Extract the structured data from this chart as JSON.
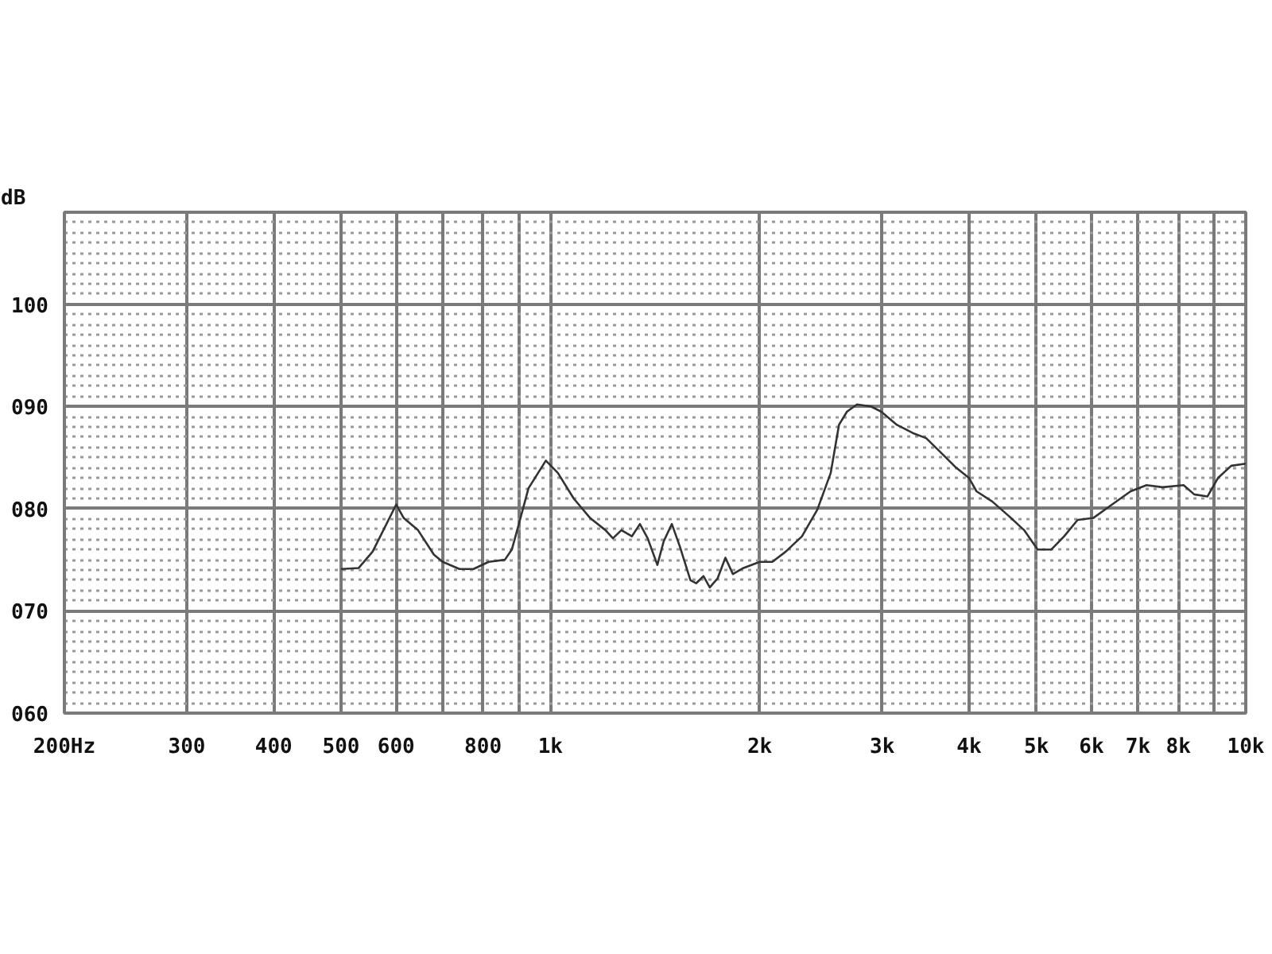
{
  "chart_data": {
    "type": "line",
    "ylabel": "dB",
    "log": "x",
    "grid": true,
    "xlim": [
      200,
      10000
    ],
    "ylim": [
      60,
      109
    ],
    "xticks": [
      {
        "value": 200,
        "label": "200Hz"
      },
      300,
      400,
      500,
      600,
      {
        "value": 700,
        "label": null
      },
      800,
      {
        "value": 900,
        "label": null
      },
      {
        "value": 1000,
        "label": "1k"
      },
      {
        "value": 2000,
        "label": "2k"
      },
      {
        "value": 3000,
        "label": "3k"
      },
      {
        "value": 4000,
        "label": "4k"
      },
      {
        "value": 5000,
        "label": "5k"
      },
      {
        "value": 6000,
        "label": "6k"
      },
      {
        "value": 7000,
        "label": "7k"
      },
      {
        "value": 8000,
        "label": "8k"
      },
      {
        "value": 9000,
        "label": null
      },
      {
        "value": 10000,
        "label": "10k"
      }
    ],
    "yticks": [
      {
        "value": 60,
        "label": "060"
      },
      {
        "value": 70,
        "label": "070"
      },
      {
        "value": 80,
        "label": "080"
      },
      {
        "value": 90,
        "label": "090"
      },
      100
    ],
    "x": [
      500,
      530,
      555,
      600,
      615,
      645,
      680,
      700,
      740,
      775,
      815,
      860,
      880,
      900,
      930,
      985,
      1025,
      1080,
      1140,
      1200,
      1230,
      1265,
      1310,
      1345,
      1380,
      1425,
      1455,
      1495,
      1535,
      1590,
      1620,
      1660,
      1695,
      1740,
      1785,
      1830,
      1895,
      2000,
      2085,
      2180,
      2300,
      2420,
      2530,
      2600,
      2670,
      2760,
      2890,
      2990,
      3150,
      3320,
      3470,
      3630,
      3820,
      4000,
      4100,
      4320,
      4560,
      4800,
      5020,
      5250,
      5480,
      5730,
      6040,
      6360,
      6830,
      7200,
      7590,
      8140,
      8430,
      8810,
      9120,
      9530,
      10000
    ],
    "series": [
      {
        "color": "#333333",
        "values": [
          74.1,
          74.2,
          75.8,
          80.4,
          79.1,
          77.9,
          75.5,
          74.8,
          74.1,
          74.1,
          74.8,
          75.0,
          76.0,
          78.4,
          82.0,
          84.7,
          83.5,
          81.0,
          79.1,
          77.9,
          77.1,
          77.9,
          77.3,
          78.5,
          77.1,
          74.5,
          76.8,
          78.5,
          76.3,
          73.0,
          72.7,
          73.4,
          72.3,
          73.2,
          75.2,
          73.6,
          74.2,
          74.8,
          74.8,
          75.8,
          77.3,
          79.9,
          83.5,
          88.2,
          89.5,
          90.2,
          90.0,
          89.5,
          88.2,
          87.4,
          86.9,
          85.6,
          84.1,
          83.0,
          81.7,
          80.7,
          79.3,
          77.9,
          76.0,
          76.0,
          77.3,
          78.9,
          79.1,
          80.2,
          81.7,
          82.3,
          82.1,
          82.3,
          81.4,
          81.2,
          83.0,
          84.2,
          84.4
        ]
      }
    ]
  }
}
